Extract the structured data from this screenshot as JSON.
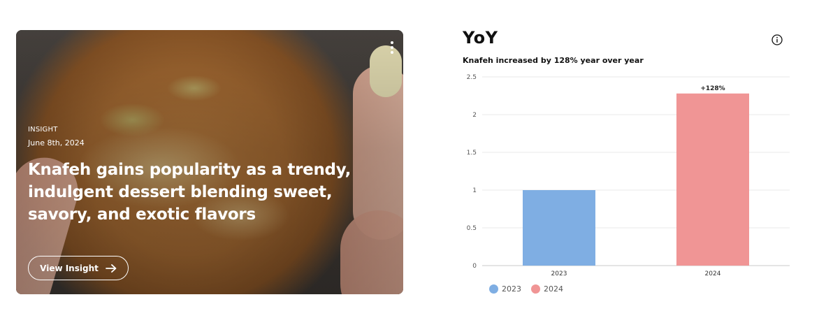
{
  "insight_card": {
    "eyebrow": "INSIGHT",
    "date": "June 8th, 2024",
    "headline": "Knafeh gains popularity as a trendy, indulgent dessert blending sweet, savory, and exotic flavors",
    "button_label": "View Insight",
    "icons": {
      "menu": "kebab-menu-icon",
      "arrow": "arrow-right-icon"
    }
  },
  "yoy": {
    "title": "YoY",
    "subtitle": "Knafeh increased by 128% year over year",
    "info_icon": "info-icon"
  },
  "chart_data": {
    "type": "bar",
    "categories": [
      "2023",
      "2024"
    ],
    "values": [
      1,
      2.28
    ],
    "data_labels": [
      "",
      "+128%"
    ],
    "colors": [
      "#7faee3",
      "#f09595"
    ],
    "ylim": [
      0,
      2.5
    ],
    "yticks": [
      "0",
      "0.5",
      "1",
      "1.5",
      "2",
      "2.5"
    ],
    "grid": true,
    "legend": {
      "position": "bottom-left",
      "entries": [
        "2023",
        "2024"
      ]
    }
  }
}
